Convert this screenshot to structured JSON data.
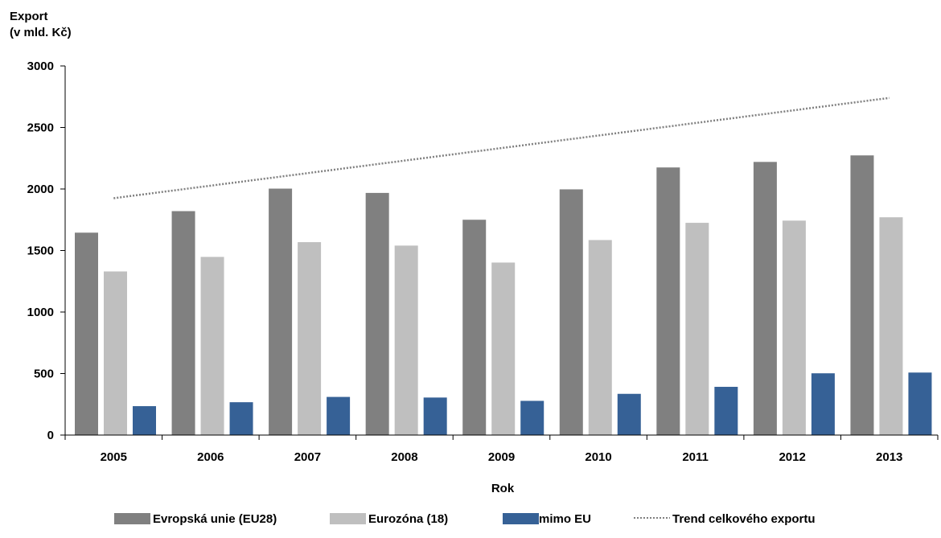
{
  "chart_data": {
    "type": "bar",
    "ylabel": "Export\n(v mld. Kč)",
    "xlabel": "Rok",
    "ylim": [
      0,
      3000
    ],
    "yticks": [
      0,
      500,
      1000,
      1500,
      2000,
      2500,
      3000
    ],
    "categories": [
      "2005",
      "2006",
      "2007",
      "2008",
      "2009",
      "2010",
      "2011",
      "2012",
      "2013"
    ],
    "series": [
      {
        "name": "Evropská unie (EU28)",
        "color": "#808080",
        "values": [
          1645,
          1820,
          2003,
          1968,
          1750,
          1997,
          2175,
          2220,
          2273
        ]
      },
      {
        "name": "Eurozóna (18)",
        "color": "#bfbfbf",
        "values": [
          1330,
          1448,
          1568,
          1540,
          1402,
          1585,
          1725,
          1743,
          1770
        ]
      },
      {
        "name": "mimo EU",
        "color": "#366196",
        "values": [
          235,
          267,
          310,
          305,
          278,
          335,
          392,
          502,
          508
        ]
      }
    ],
    "trend": {
      "name": "Trend celkového exportu",
      "color": "#808080",
      "style": "dotted",
      "start": {
        "x": "2005",
        "y": 1925
      },
      "end": {
        "x": "2013",
        "y": 2740
      }
    },
    "grid": false,
    "legend": "bottom"
  }
}
